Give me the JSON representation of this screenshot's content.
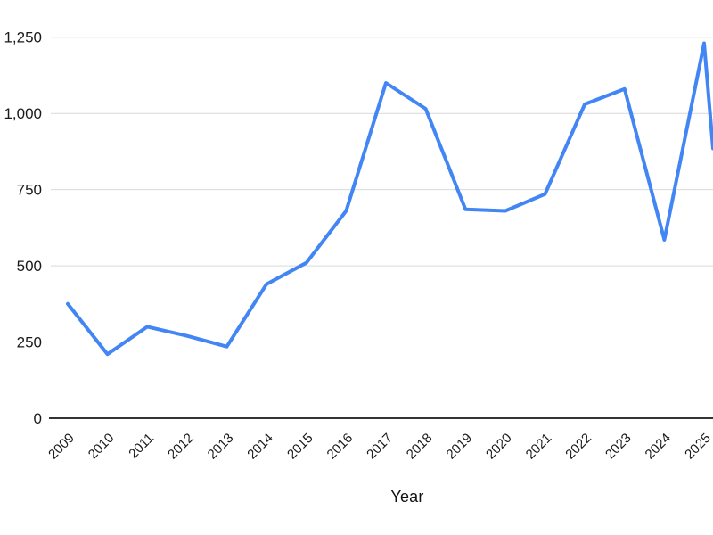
{
  "page": {
    "background": "#ffffff"
  },
  "chart_data": {
    "type": "line",
    "title": "",
    "xlabel": "Year",
    "ylabel": "",
    "x": [
      2009,
      2010,
      2011,
      2012,
      2013,
      2014,
      2015,
      2016,
      2017,
      2018,
      2019,
      2020,
      2021,
      2022,
      2023,
      2024,
      2025
    ],
    "values": [
      375,
      210,
      300,
      270,
      235,
      440,
      510,
      680,
      1100,
      1015,
      685,
      680,
      735,
      1030,
      1080,
      585,
      1230
    ],
    "ylim": [
      0,
      1250
    ],
    "ytick_values": [
      0,
      250,
      500,
      750,
      1000,
      1250
    ],
    "ytick_labels": [
      "0",
      "250",
      "500",
      "750",
      "1,000",
      "1,250"
    ],
    "grid": "horizontal-only",
    "legend": "none",
    "x_labels_rotation_deg": -45,
    "line_continues_past_right_edge": true,
    "edge_exit_value": 885,
    "colors": {
      "line": "#4285f4",
      "gridline": "#d9d9d9",
      "axis_baseline": "#333333",
      "tick_label": "#1a1a1a",
      "axis_title": "#111111"
    }
  }
}
